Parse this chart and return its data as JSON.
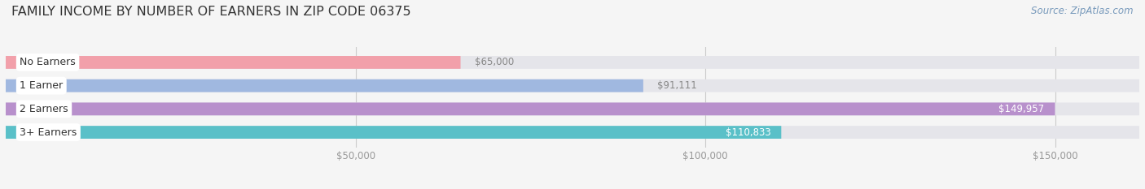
{
  "title": "FAMILY INCOME BY NUMBER OF EARNERS IN ZIP CODE 06375",
  "source": "Source: ZipAtlas.com",
  "categories": [
    "No Earners",
    "1 Earner",
    "2 Earners",
    "3+ Earners"
  ],
  "values": [
    65000,
    91111,
    149957,
    110833
  ],
  "bar_colors": [
    "#f2a0aa",
    "#a0b8e0",
    "#b890cc",
    "#5ac0c8"
  ],
  "value_labels": [
    "$65,000",
    "$91,111",
    "$149,957",
    "$110,833"
  ],
  "value_label_colors": [
    "#888888",
    "#888888",
    "#ffffff",
    "#ffffff"
  ],
  "bg_color": "#f5f5f5",
  "bar_bg_color": "#e5e5ea",
  "xlim": [
    0,
    162000
  ],
  "xticks": [
    50000,
    100000,
    150000
  ],
  "xticklabels": [
    "$50,000",
    "$100,000",
    "$150,000"
  ],
  "title_fontsize": 11.5,
  "cat_fontsize": 9,
  "value_fontsize": 8.5,
  "source_fontsize": 8.5,
  "tick_fontsize": 8.5
}
